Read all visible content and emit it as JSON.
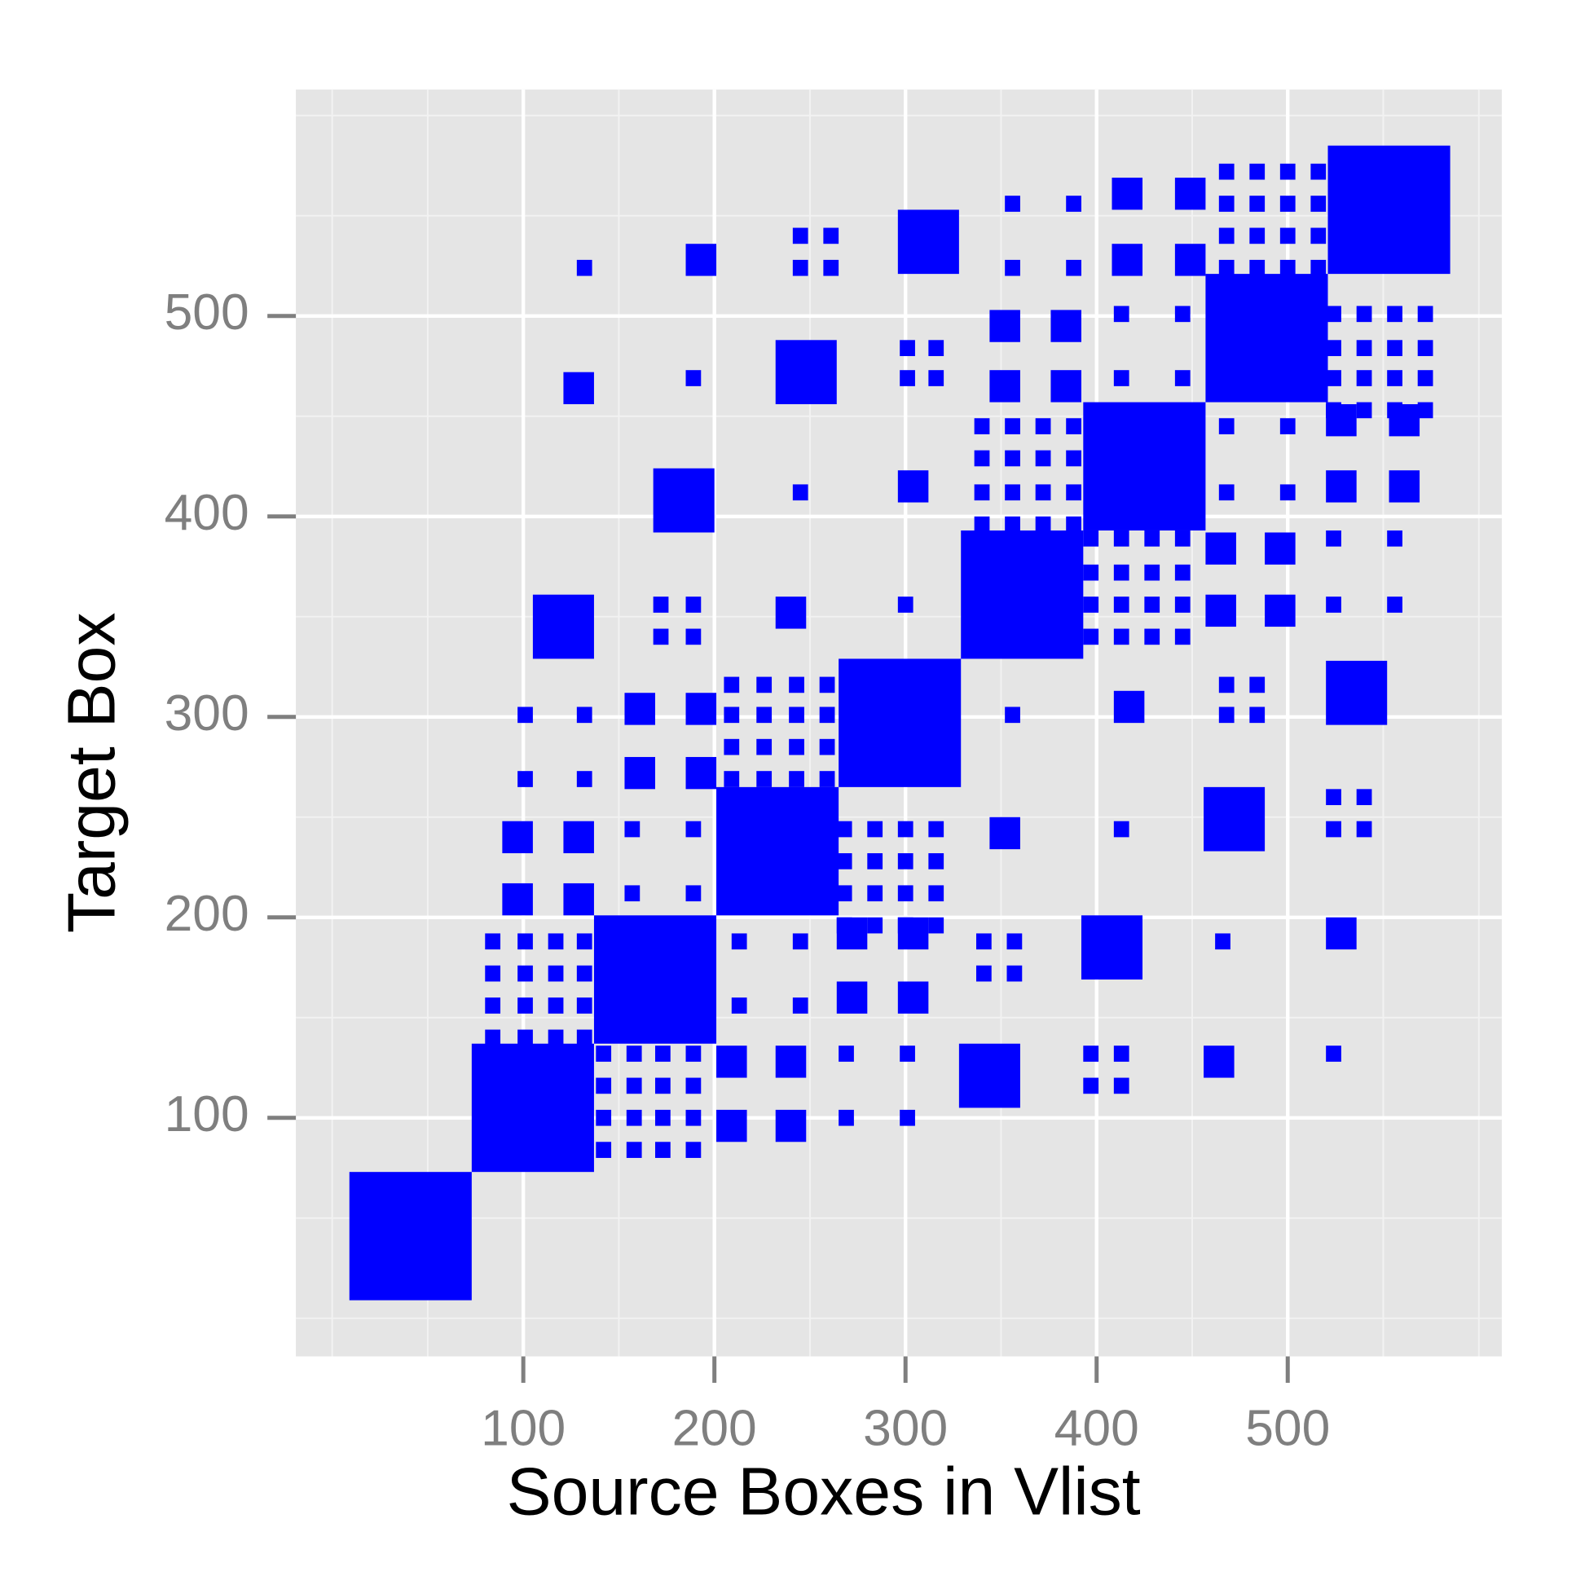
{
  "chart_data": {
    "type": "scatter",
    "marker": "square",
    "x_label": "Source Boxes in Vlist",
    "y_label": "Target Box",
    "xlim": [
      -19,
      612
    ],
    "ylim": [
      -19,
      613
    ],
    "xticks": [
      100,
      200,
      300,
      400,
      500
    ],
    "yticks": [
      100,
      200,
      300,
      400,
      500
    ],
    "x_minor_grid": [
      0,
      50,
      150,
      250,
      350,
      450,
      550,
      600
    ],
    "y_minor_grid": [
      0,
      50,
      150,
      250,
      350,
      450,
      550,
      600
    ],
    "grid": true,
    "series": [
      {
        "color": "#0000ff",
        "size": 64,
        "x": [
          41,
          105,
          169,
          233,
          297,
          361,
          425,
          489,
          553
        ],
        "values": [
          41,
          105,
          169,
          233,
          297,
          361,
          425,
          489,
          553
        ]
      },
      {
        "color": "#0000ff",
        "size": 32,
        "x": [
          121,
          184,
          248,
          312,
          344,
          408,
          472,
          536
        ],
        "values": [
          345,
          408,
          472,
          537,
          121,
          185,
          249,
          312
        ]
      },
      {
        "color": "#0000ff",
        "size": 16,
        "x": [
          129,
          193,
          97,
          129,
          97,
          129,
          161,
          161,
          193,
          193,
          209,
          240,
          209,
          240,
          272,
          304,
          272,
          304,
          304,
          240,
          352,
          417,
          416,
          449,
          416,
          449,
          465,
          496,
          465,
          496,
          528,
          561,
          528,
          561,
          528,
          464,
          352,
          384,
          352,
          384
        ],
        "values": [
          464,
          528,
          240,
          240,
          209,
          209,
          304,
          272,
          304,
          272,
          128,
          128,
          96,
          96,
          192,
          192,
          160,
          160,
          415,
          352,
          242,
          305,
          528,
          528,
          561,
          561,
          384,
          384,
          353,
          353,
          415,
          415,
          448,
          448,
          192,
          128,
          495,
          495,
          465,
          465
        ]
      },
      {
        "color": "#0000ff",
        "size": 8,
        "x": [
          132,
          189,
          245,
          300,
          356,
          413,
          466,
          524,
          101,
          132,
          101,
          132,
          172,
          189,
          172,
          189,
          245,
          261,
          245,
          261,
          301,
          316,
          301,
          316,
          341,
          357,
          341,
          357,
          397,
          413,
          397,
          413,
          468,
          484,
          468,
          484,
          524,
          540,
          524,
          540,
          356,
          388,
          356,
          388,
          413,
          445,
          413,
          445,
          524,
          556,
          524,
          556,
          269,
          301,
          269,
          301,
          157,
          189,
          157,
          189,
          468,
          500,
          468,
          500,
          213,
          245,
          213,
          245,
          84,
          101,
          117,
          132,
          84,
          101,
          117,
          132,
          84,
          101,
          117,
          132,
          84,
          101,
          117,
          132,
          142,
          158,
          173,
          189,
          142,
          158,
          173,
          189,
          142,
          158,
          173,
          189,
          142,
          158,
          173,
          189,
          209,
          226,
          243,
          259,
          209,
          226,
          243,
          259,
          209,
          226,
          243,
          259,
          209,
          226,
          243,
          259,
          268,
          284,
          300,
          316,
          268,
          284,
          300,
          316,
          268,
          284,
          300,
          316,
          268,
          284,
          300,
          316,
          340,
          356,
          372,
          388,
          340,
          356,
          372,
          388,
          340,
          356,
          372,
          388,
          340,
          356,
          372,
          388,
          397,
          413,
          429,
          445,
          397,
          413,
          429,
          445,
          397,
          413,
          429,
          445,
          397,
          413,
          429,
          445,
          468,
          484,
          500,
          516,
          468,
          484,
          500,
          516,
          468,
          484,
          500,
          516,
          468,
          484,
          500,
          516,
          524,
          540,
          556,
          572,
          524,
          540,
          556,
          572,
          524,
          540,
          556,
          572,
          524,
          540,
          556,
          572
        ],
        "values": [
          524,
          469,
          412,
          356,
          301,
          244,
          188,
          132,
          301,
          301,
          269,
          269,
          356,
          356,
          340,
          340,
          540,
          540,
          524,
          524,
          484,
          484,
          469,
          469,
          188,
          188,
          172,
          172,
          132,
          132,
          116,
          116,
          316,
          316,
          301,
          301,
          260,
          260,
          244,
          244,
          556,
          556,
          524,
          524,
          501,
          501,
          469,
          469,
          389,
          389,
          356,
          356,
          132,
          132,
          100,
          100,
          244,
          244,
          212,
          212,
          445,
          445,
          412,
          412,
          188,
          188,
          156,
          156,
          188,
          188,
          188,
          188,
          172,
          172,
          172,
          172,
          156,
          156,
          156,
          156,
          140,
          140,
          140,
          140,
          132,
          132,
          132,
          132,
          116,
          116,
          116,
          116,
          100,
          100,
          100,
          100,
          84,
          84,
          84,
          84,
          316,
          316,
          316,
          316,
          301,
          301,
          301,
          301,
          285,
          285,
          285,
          285,
          269,
          269,
          269,
          269,
          244,
          244,
          244,
          244,
          228,
          228,
          228,
          228,
          212,
          212,
          212,
          212,
          196,
          196,
          196,
          196,
          445,
          445,
          445,
          445,
          429,
          429,
          429,
          429,
          412,
          412,
          412,
          412,
          396,
          396,
          396,
          396,
          389,
          389,
          389,
          389,
          372,
          372,
          372,
          372,
          356,
          356,
          356,
          356,
          340,
          340,
          340,
          340,
          572,
          572,
          572,
          572,
          556,
          556,
          556,
          556,
          540,
          540,
          540,
          540,
          524,
          524,
          524,
          524,
          501,
          501,
          501,
          501,
          484,
          484,
          484,
          484,
          469,
          469,
          469,
          469,
          453,
          453,
          453,
          453
        ]
      }
    ]
  }
}
